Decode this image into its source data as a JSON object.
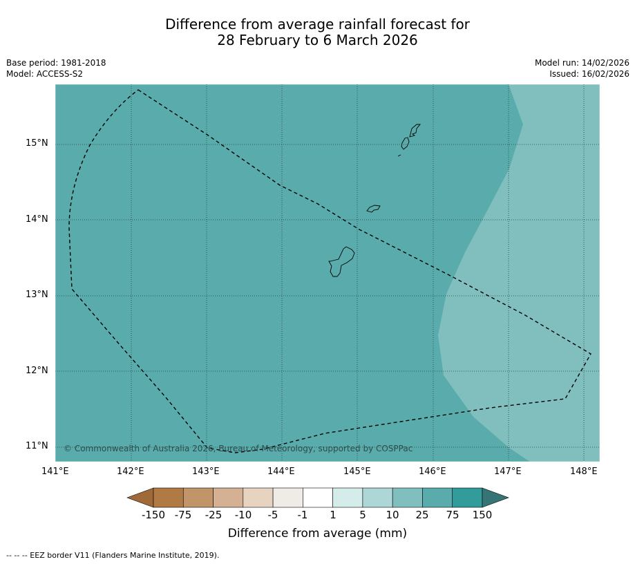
{
  "title_line1": "Difference from average rainfall forecast for",
  "title_line2": "28 February to 6 March 2026",
  "base_period": "Base period: 1981-2018",
  "model": "Model: ACCESS-S2",
  "model_run": "Model run: 14/02/2026",
  "issued": "Issued: 16/02/2026",
  "copyright": "© Commonwealth of Australia 2026, Bureau of Meteorology, supported by COSPPac",
  "lat_labels": [
    "15°N",
    "14°N",
    "13°N",
    "12°N",
    "11°N"
  ],
  "lon_labels": [
    "141°E",
    "142°E",
    "143°E",
    "144°E",
    "145°E",
    "146°E",
    "147°E",
    "148°E"
  ],
  "colorbar": {
    "labels": [
      "-150",
      "-75",
      "-25",
      "-10",
      "-5",
      "-1",
      "1",
      "5",
      "10",
      "25",
      "75",
      "150"
    ],
    "colors": [
      "#a0693a",
      "#b07a45",
      "#c19469",
      "#d4b193",
      "#e8d3c1",
      "#efebe6",
      "#ffffff",
      "#d4ecea",
      "#acd7d6",
      "#81bfbf",
      "#5aabab",
      "#349b9b",
      "#357575"
    ],
    "title": "Difference from average (mm)"
  },
  "map_colors": {
    "band_25_75": "#5aabab",
    "band_10_25": "#81bfbf"
  },
  "footnote": "--  --  -- EEZ border V11 (Flanders Marine Institute, 2019)."
}
